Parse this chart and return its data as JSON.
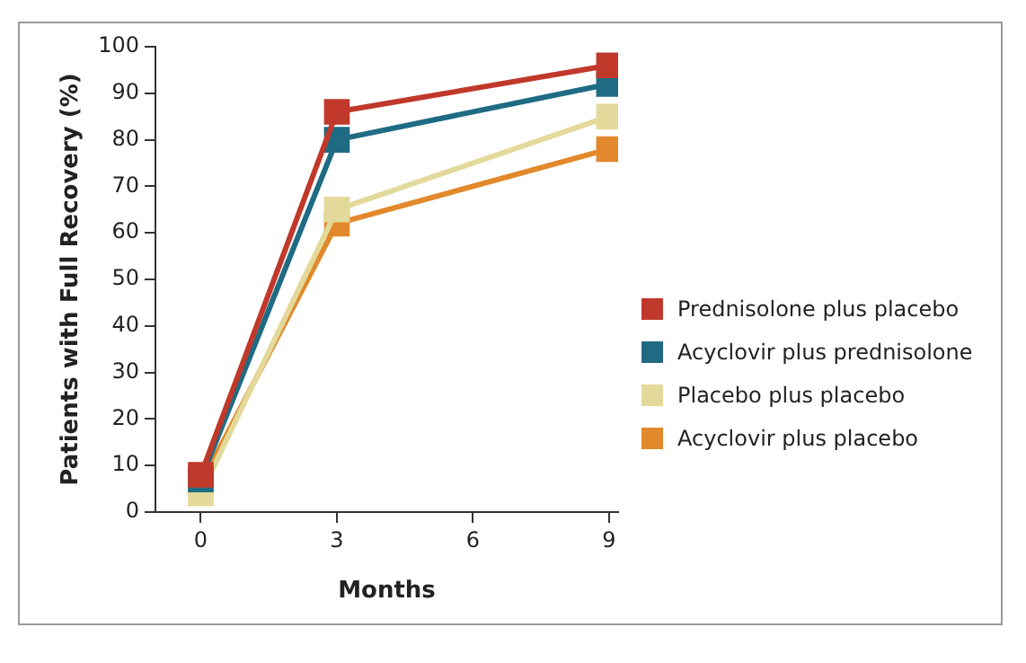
{
  "chart_data": {
    "type": "line",
    "xlabel": "Months",
    "ylabel": "Patients with Full Recovery (%)",
    "x": [
      0,
      3,
      9
    ],
    "series": [
      {
        "name": "Prednisolone plus placebo",
        "color": "#c0392b",
        "values": [
          8,
          86,
          96
        ]
      },
      {
        "name": "Acyclovir plus prednisolone",
        "color": "#1f6b84",
        "values": [
          7,
          80,
          92
        ]
      },
      {
        "name": "Placebo plus placebo",
        "color": "#e3d99a",
        "values": [
          4,
          65,
          85
        ]
      },
      {
        "name": "Acyclovir plus placebo",
        "color": "#e2892c",
        "values": [
          6,
          62,
          78
        ]
      }
    ],
    "xlim": [
      -1,
      9.2
    ],
    "xticks": [
      0,
      3,
      6,
      9
    ],
    "ylim": [
      0,
      100
    ],
    "yticks": [
      0,
      10,
      20,
      30,
      40,
      50,
      60,
      70,
      80,
      90,
      100
    ],
    "grid": false,
    "legend": "right",
    "marker": "square",
    "line_style": "solid"
  }
}
